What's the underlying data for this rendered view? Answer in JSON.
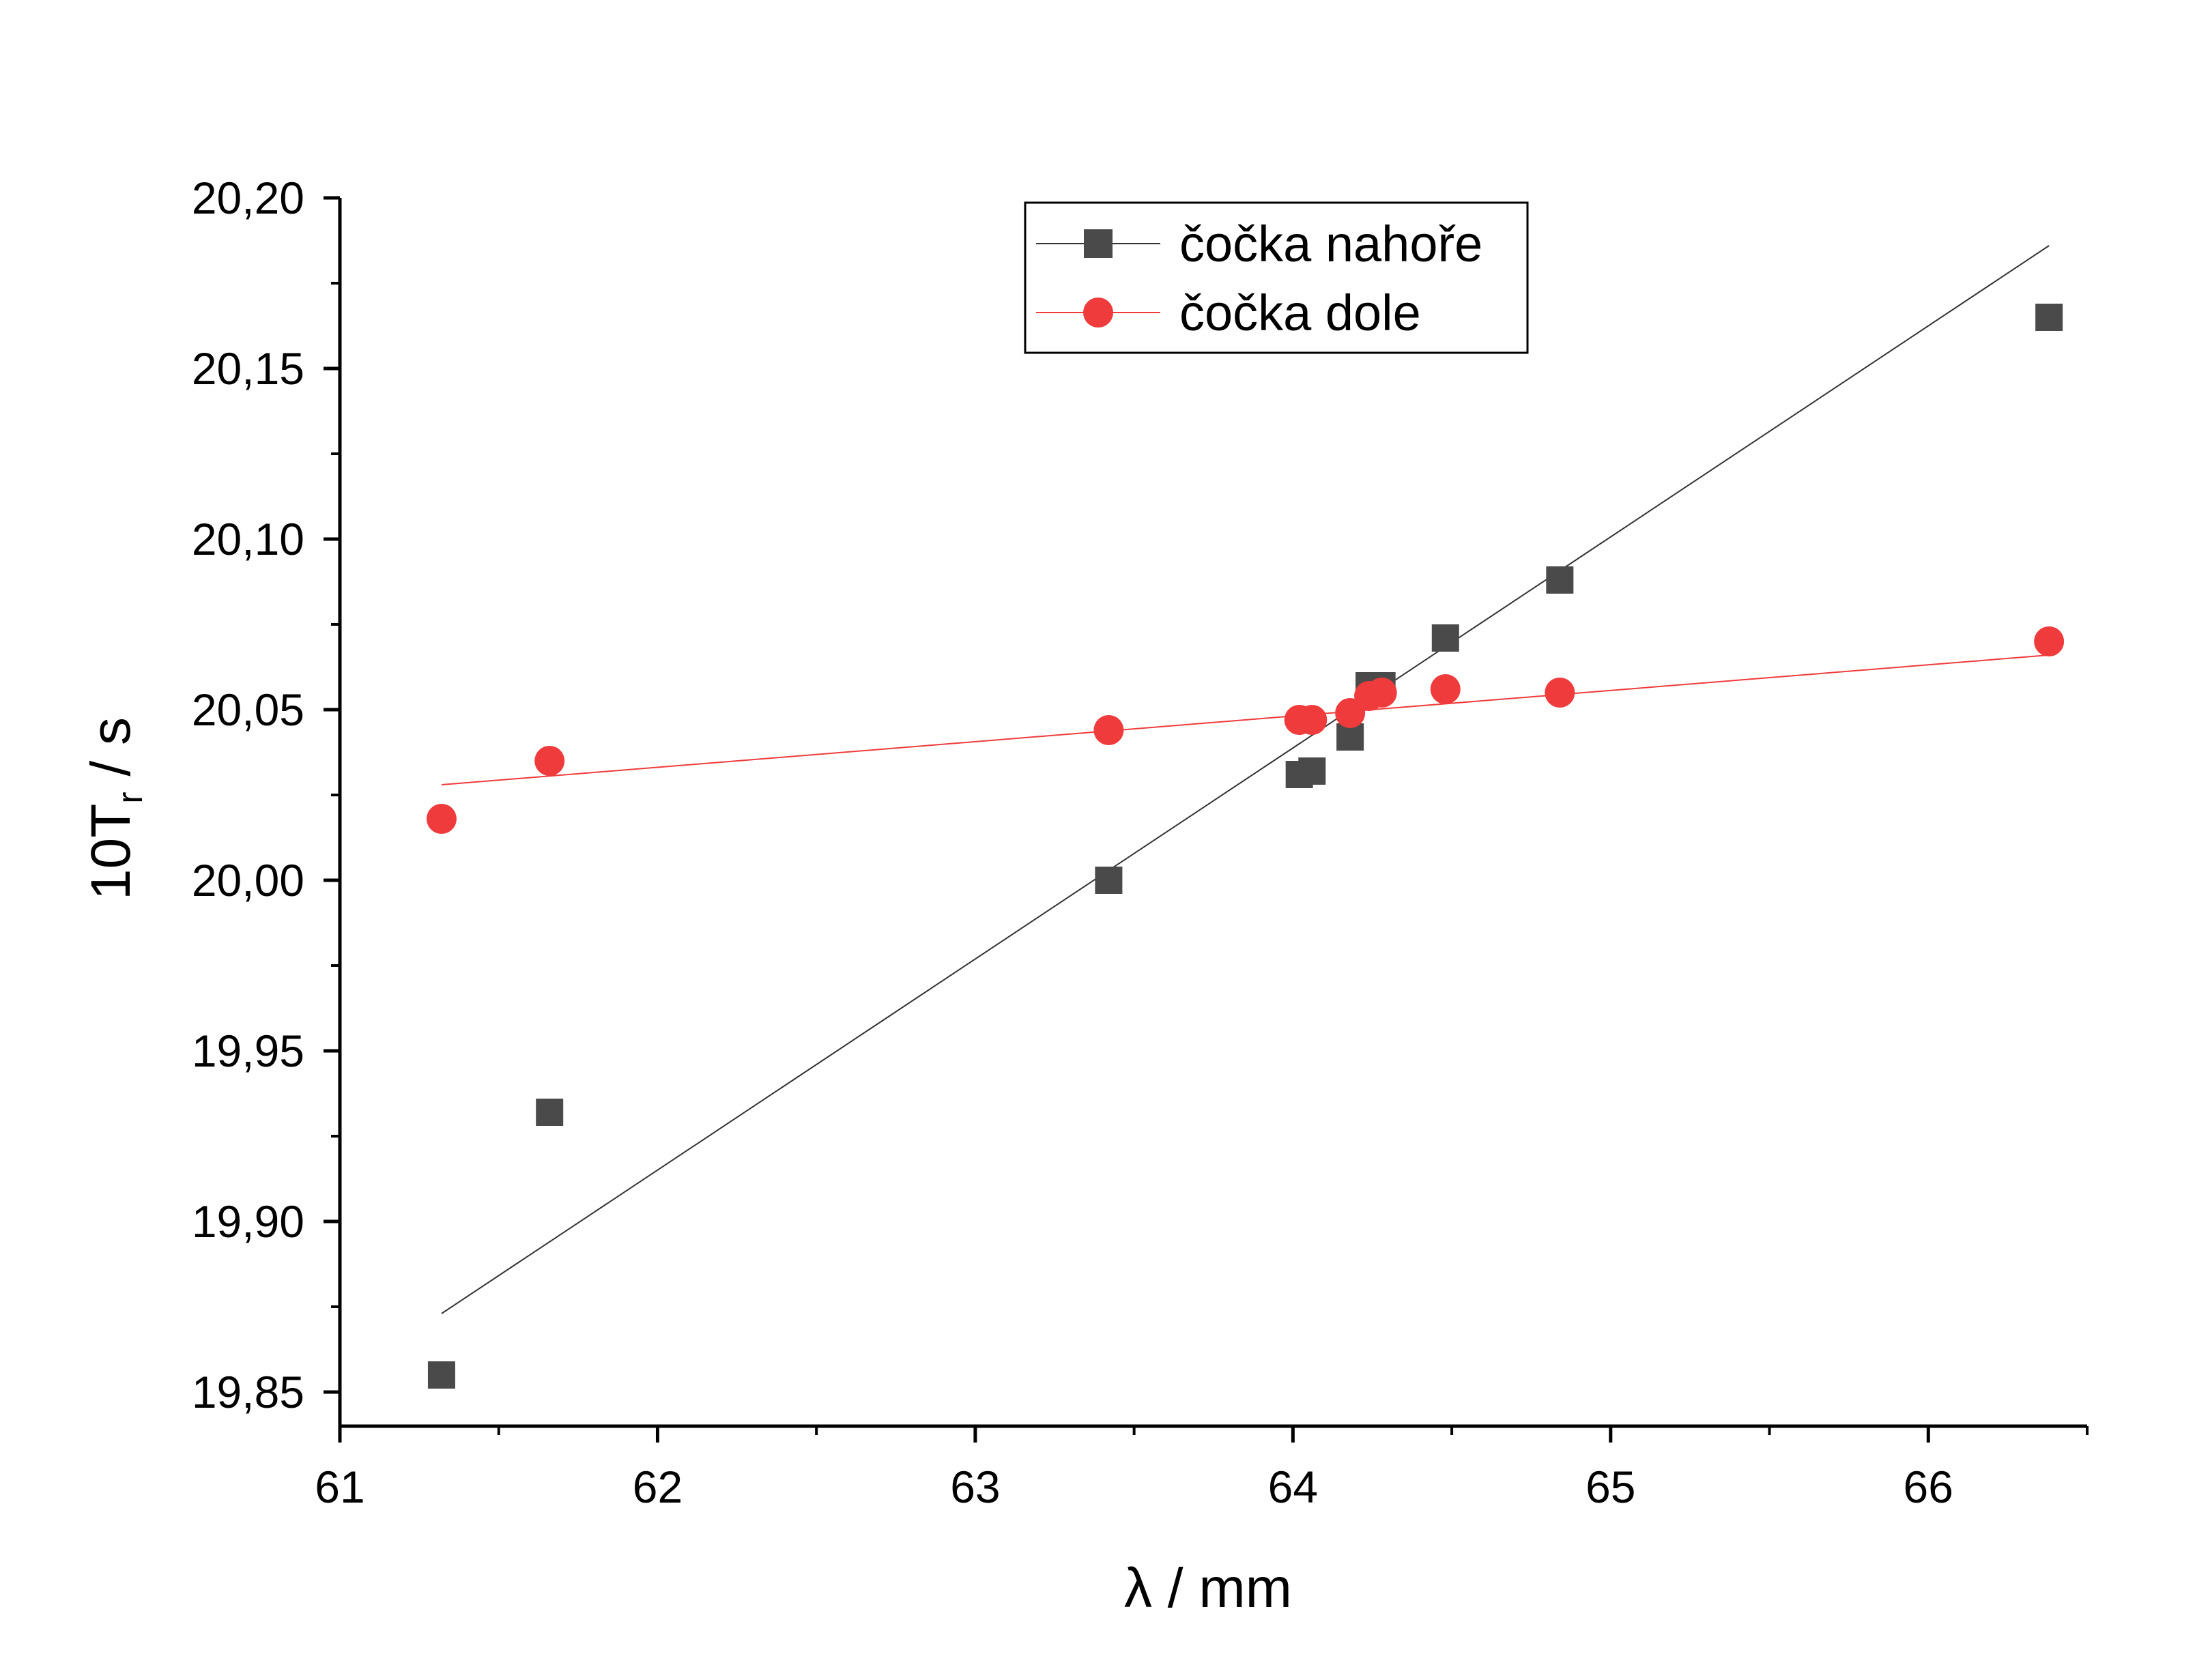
{
  "chart_data": {
    "type": "scatter",
    "xlabel": "λ / mm",
    "ylabel_main": "10T",
    "ylabel_sub": "r",
    "ylabel_tail": " / s",
    "xlim": [
      61,
      66.5
    ],
    "ylim": [
      19.84,
      20.2
    ],
    "xticks": [
      61,
      62,
      63,
      64,
      65,
      66
    ],
    "xtick_labels": [
      "61",
      "62",
      "63",
      "64",
      "65",
      "66"
    ],
    "yticks": [
      19.85,
      19.9,
      19.95,
      20.0,
      20.05,
      20.1,
      20.15,
      20.2
    ],
    "ytick_labels": [
      "19,85",
      "19,90",
      "19,95",
      "20,00",
      "20,05",
      "20,10",
      "20,15",
      "20,20"
    ],
    "legend_position": "top-center",
    "series": [
      {
        "name": "čočka nahoře",
        "marker": "square",
        "color": "#4a4a4a",
        "line_color": "#333333",
        "x": [
          61.32,
          61.66,
          63.42,
          64.02,
          64.06,
          64.18,
          64.24,
          64.28,
          64.48,
          64.84,
          66.38
        ],
        "y": [
          19.855,
          19.932,
          20.0,
          20.031,
          20.032,
          20.042,
          20.057,
          20.057,
          20.071,
          20.088,
          20.165
        ],
        "fit": {
          "x": [
            61.32,
            66.38
          ],
          "y": [
            19.873,
            20.186
          ]
        }
      },
      {
        "name": "čočka dole",
        "marker": "circle",
        "color": "#ef3b3b",
        "line_color": "#ef3b3b",
        "x": [
          61.32,
          61.66,
          63.42,
          64.02,
          64.06,
          64.18,
          64.24,
          64.28,
          64.48,
          64.84,
          66.38
        ],
        "y": [
          20.018,
          20.035,
          20.044,
          20.047,
          20.047,
          20.049,
          20.054,
          20.055,
          20.056,
          20.055,
          20.07
        ],
        "fit": {
          "x": [
            61.32,
            66.38
          ],
          "y": [
            20.028,
            20.066
          ]
        }
      }
    ]
  }
}
